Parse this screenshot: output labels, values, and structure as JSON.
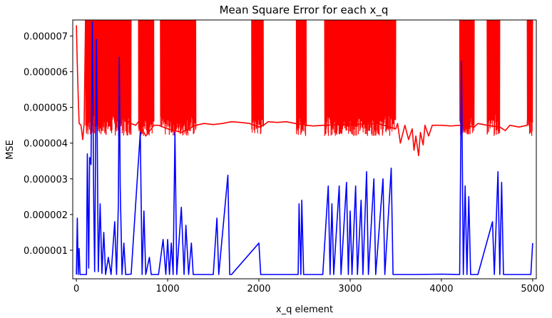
{
  "chart_data": {
    "type": "line",
    "title": "Mean Square Error for each x_q",
    "xlabel": "x_q element",
    "ylabel": "MSE",
    "xlim": [
      -40,
      5040
    ],
    "ylim": [
      2e-07,
      7.45e-06
    ],
    "x_ticks": [
      0,
      1000,
      2000,
      3000,
      4000,
      5000
    ],
    "x_tick_labels": [
      "0",
      "1000",
      "2000",
      "3000",
      "4000",
      "5000"
    ],
    "y_ticks": [
      1e-06,
      2e-06,
      3e-06,
      4e-06,
      5e-06,
      6e-06,
      7e-06
    ],
    "y_tick_labels": [
      "0.000001",
      "0.000002",
      "0.000003",
      "0.000004",
      "0.000005",
      "0.000006",
      "0.000007"
    ],
    "grid": false,
    "colors": {
      "red_series": "#ff0000",
      "blue_series": "#0000ff"
    },
    "series": [
      {
        "color": "#ff0000",
        "baseline": 4.5e-06,
        "dense_bands": [
          [
            100,
            600
          ],
          [
            680,
            850
          ],
          [
            920,
            1310
          ],
          [
            1920,
            2050
          ],
          [
            2410,
            2520
          ],
          [
            2720,
            3500
          ],
          [
            4200,
            4360
          ],
          [
            4500,
            4640
          ],
          [
            4940,
            5000
          ]
        ],
        "band_extent": [
          4.2e-06,
          7.45e-06
        ],
        "points": [
          [
            0,
            7.3e-06
          ],
          [
            10,
            6.2e-06
          ],
          [
            20,
            5.3e-06
          ],
          [
            30,
            4.55e-06
          ],
          [
            50,
            4.5e-06
          ],
          [
            70,
            4.1e-06
          ],
          [
            85,
            4.55e-06
          ],
          [
            100,
            7.45e-06
          ],
          [
            150,
            5.3e-06
          ],
          [
            250,
            4.9e-06
          ],
          [
            400,
            4.8e-06
          ],
          [
            500,
            4.7e-06
          ],
          [
            600,
            4.55e-06
          ],
          [
            650,
            4.5e-06
          ],
          [
            680,
            4.6e-06
          ],
          [
            760,
            4.2e-06
          ],
          [
            850,
            4.5e-06
          ],
          [
            900,
            4.5e-06
          ],
          [
            1000,
            4.4e-06
          ],
          [
            1150,
            4.3e-06
          ],
          [
            1310,
            4.5e-06
          ],
          [
            1400,
            4.55e-06
          ],
          [
            1500,
            4.52e-06
          ],
          [
            1600,
            4.55e-06
          ],
          [
            1700,
            4.6e-06
          ],
          [
            1800,
            4.58e-06
          ],
          [
            1900,
            4.55e-06
          ],
          [
            2000,
            4.45e-06
          ],
          [
            2050,
            4.5e-06
          ],
          [
            2100,
            4.6e-06
          ],
          [
            2200,
            4.58e-06
          ],
          [
            2300,
            4.6e-06
          ],
          [
            2400,
            4.55e-06
          ],
          [
            2520,
            4.5e-06
          ],
          [
            2600,
            4.48e-06
          ],
          [
            2700,
            4.5e-06
          ],
          [
            3000,
            4.52e-06
          ],
          [
            3300,
            4.55e-06
          ],
          [
            3500,
            4.4e-06
          ],
          [
            3520,
            4.55e-06
          ],
          [
            3550,
            4e-06
          ],
          [
            3580,
            4.3e-06
          ],
          [
            3600,
            4.5e-06
          ],
          [
            3640,
            4.1e-06
          ],
          [
            3680,
            4.4e-06
          ],
          [
            3700,
            3.8e-06
          ],
          [
            3720,
            4.2e-06
          ],
          [
            3750,
            3.65e-06
          ],
          [
            3770,
            4.3e-06
          ],
          [
            3800,
            3.95e-06
          ],
          [
            3820,
            4.5e-06
          ],
          [
            3860,
            4.2e-06
          ],
          [
            3900,
            4.5e-06
          ],
          [
            4000,
            4.5e-06
          ],
          [
            4100,
            4.48e-06
          ],
          [
            4200,
            4.5e-06
          ],
          [
            4360,
            4.45e-06
          ],
          [
            4400,
            4.55e-06
          ],
          [
            4500,
            4.5e-06
          ],
          [
            4640,
            4.45e-06
          ],
          [
            4700,
            4.35e-06
          ],
          [
            4750,
            4.5e-06
          ],
          [
            4850,
            4.45e-06
          ],
          [
            4940,
            4.5e-06
          ],
          [
            5000,
            7.4e-06
          ]
        ]
      },
      {
        "color": "#0000ff",
        "baseline": 3.2e-07,
        "points": [
          [
            0,
            3.2e-07
          ],
          [
            10,
            1.9e-06
          ],
          [
            20,
            3.2e-07
          ],
          [
            30,
            1.05e-06
          ],
          [
            40,
            3.2e-07
          ],
          [
            110,
            3.2e-07
          ],
          [
            120,
            3.7e-06
          ],
          [
            135,
            5e-07
          ],
          [
            145,
            3.6e-06
          ],
          [
            160,
            3.4e-06
          ],
          [
            175,
            7.4e-06
          ],
          [
            190,
            2.3e-06
          ],
          [
            200,
            4e-07
          ],
          [
            220,
            6.9e-06
          ],
          [
            240,
            4e-07
          ],
          [
            260,
            2.3e-06
          ],
          [
            280,
            3.5e-07
          ],
          [
            300,
            1.5e-06
          ],
          [
            320,
            3.2e-07
          ],
          [
            350,
            8e-07
          ],
          [
            380,
            3.2e-07
          ],
          [
            420,
            1.8e-06
          ],
          [
            440,
            3.2e-07
          ],
          [
            460,
            2.3e-06
          ],
          [
            470,
            6.4e-06
          ],
          [
            480,
            2.8e-06
          ],
          [
            500,
            3.2e-07
          ],
          [
            520,
            1.2e-06
          ],
          [
            540,
            3.2e-07
          ],
          [
            600,
            3.3e-07
          ],
          [
            700,
            4.3e-06
          ],
          [
            720,
            3.2e-07
          ],
          [
            740,
            2.1e-06
          ],
          [
            760,
            3.2e-07
          ],
          [
            800,
            8e-07
          ],
          [
            820,
            3.2e-07
          ],
          [
            900,
            3.2e-07
          ],
          [
            950,
            1.3e-06
          ],
          [
            980,
            3.2e-07
          ],
          [
            1000,
            1.3e-06
          ],
          [
            1020,
            3.2e-07
          ],
          [
            1040,
            1.2e-06
          ],
          [
            1060,
            3.2e-07
          ],
          [
            1080,
            4.3e-06
          ],
          [
            1100,
            3.2e-07
          ],
          [
            1150,
            2.2e-06
          ],
          [
            1180,
            3.2e-07
          ],
          [
            1200,
            1.7e-06
          ],
          [
            1230,
            3.2e-07
          ],
          [
            1260,
            1.2e-06
          ],
          [
            1280,
            3.2e-07
          ],
          [
            1400,
            3.2e-07
          ],
          [
            1500,
            3.2e-07
          ],
          [
            1540,
            1.9e-06
          ],
          [
            1560,
            3.2e-07
          ],
          [
            1660,
            3.1e-06
          ],
          [
            1680,
            3.2e-07
          ],
          [
            1700,
            3.2e-07
          ],
          [
            2000,
            1.2e-06
          ],
          [
            2020,
            3.2e-07
          ],
          [
            2430,
            3.2e-07
          ],
          [
            2440,
            2.3e-06
          ],
          [
            2460,
            3.2e-07
          ],
          [
            2470,
            2.4e-06
          ],
          [
            2490,
            3.2e-07
          ],
          [
            2700,
            3.2e-07
          ],
          [
            2760,
            2.8e-06
          ],
          [
            2780,
            3.2e-07
          ],
          [
            2800,
            2.3e-06
          ],
          [
            2820,
            3.2e-07
          ],
          [
            2880,
            2.8e-06
          ],
          [
            2900,
            3.2e-07
          ],
          [
            2960,
            2.9e-06
          ],
          [
            2980,
            3.2e-07
          ],
          [
            3000,
            2.1e-06
          ],
          [
            3020,
            3.2e-07
          ],
          [
            3060,
            2.8e-06
          ],
          [
            3080,
            3.2e-07
          ],
          [
            3120,
            2.4e-06
          ],
          [
            3140,
            3.2e-07
          ],
          [
            3180,
            3.2e-06
          ],
          [
            3200,
            3.2e-07
          ],
          [
            3260,
            3e-06
          ],
          [
            3280,
            3.2e-07
          ],
          [
            3360,
            3e-06
          ],
          [
            3380,
            3.2e-07
          ],
          [
            3450,
            3.3e-06
          ],
          [
            3470,
            3.2e-07
          ],
          [
            3500,
            3.2e-07
          ],
          [
            3700,
            3.2e-07
          ],
          [
            4000,
            3.3e-07
          ],
          [
            4200,
            3.2e-07
          ],
          [
            4220,
            6.3e-06
          ],
          [
            4240,
            3.2e-07
          ],
          [
            4260,
            2.8e-06
          ],
          [
            4280,
            3.2e-07
          ],
          [
            4300,
            2.5e-06
          ],
          [
            4320,
            3.2e-07
          ],
          [
            4400,
            3.2e-07
          ],
          [
            4560,
            1.8e-06
          ],
          [
            4580,
            3.2e-07
          ],
          [
            4620,
            3.2e-06
          ],
          [
            4640,
            3.2e-07
          ],
          [
            4660,
            2.9e-06
          ],
          [
            4680,
            3.2e-07
          ],
          [
            4800,
            3.2e-07
          ],
          [
            4980,
            3.2e-07
          ],
          [
            5000,
            1.2e-06
          ]
        ]
      }
    ]
  }
}
